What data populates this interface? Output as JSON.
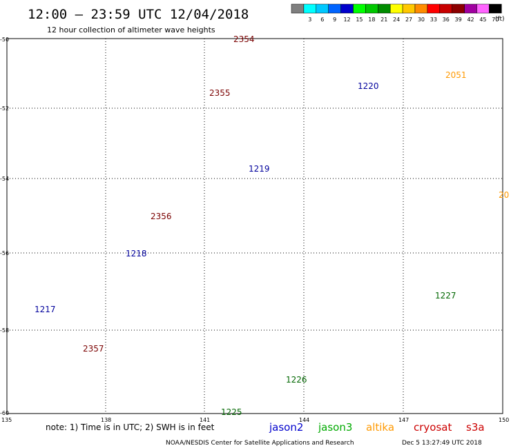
{
  "header": {
    "title": "12:00 — 23:59 UTC 12/04/2018",
    "subtitle": "12 hour collection of altimeter wave heights"
  },
  "colorbar": {
    "unit": "(ft)",
    "bins": [
      {
        "label": "",
        "color": "#7f7f7f"
      },
      {
        "label": "3",
        "color": "#00ffff"
      },
      {
        "label": "6",
        "color": "#00c8ff"
      },
      {
        "label": "9",
        "color": "#0064ff"
      },
      {
        "label": "12",
        "color": "#0000cc"
      },
      {
        "label": "15",
        "color": "#00ff00"
      },
      {
        "label": "18",
        "color": "#00c800"
      },
      {
        "label": "21",
        "color": "#008c00"
      },
      {
        "label": "24",
        "color": "#ffff00"
      },
      {
        "label": "27",
        "color": "#ffc800"
      },
      {
        "label": "30",
        "color": "#ff8c00"
      },
      {
        "label": "33",
        "color": "#ff0000"
      },
      {
        "label": "36",
        "color": "#c80000"
      },
      {
        "label": "39",
        "color": "#8c0000"
      },
      {
        "label": "42",
        "color": "#a000a0"
      },
      {
        "label": "45",
        "color": "#ff64ff"
      },
      {
        "label": "70",
        "color": "#000000"
      }
    ]
  },
  "axes": {
    "x_ticks": [
      "135",
      "138",
      "141",
      "144",
      "147",
      "150"
    ],
    "y_ticks": [
      "-50",
      "-52",
      "-54",
      "-56",
      "-58",
      "-60"
    ]
  },
  "passes": [
    {
      "label": "2354",
      "color": "#7a0000"
    },
    {
      "label": "2355",
      "color": "#7a0000"
    },
    {
      "label": "2356",
      "color": "#7a0000"
    },
    {
      "label": "2357",
      "color": "#7a0000"
    },
    {
      "label": "1220",
      "color": "#00009c"
    },
    {
      "label": "2051",
      "color": "#ff9900"
    },
    {
      "label": "1219",
      "color": "#00009c"
    },
    {
      "label": "1218",
      "color": "#00009c"
    },
    {
      "label": "1217",
      "color": "#00009c"
    },
    {
      "label": "1227",
      "color": "#006600"
    },
    {
      "label": "1226",
      "color": "#006600"
    },
    {
      "label": "1225",
      "color": "#006600"
    },
    {
      "label": "20",
      "color": "#ff9900"
    }
  ],
  "legend": {
    "note": "note: 1) Time is in UTC; 2) SWH is in feet",
    "missions": [
      {
        "name": "jason2",
        "color": "#0000cc"
      },
      {
        "name": "jason3",
        "color": "#00aa00"
      },
      {
        "name": "altika",
        "color": "#ff9900"
      },
      {
        "name": "cryosat",
        "color": "#cc0000"
      },
      {
        "name": "s3a",
        "color": "#cc0000"
      }
    ]
  },
  "footer": {
    "org": "NOAA/NESDIS Center for Satellite Applications and Research",
    "timestamp": "Dec  5 13:27:49 UTC 2018"
  },
  "colors": {
    "grid": "#000000",
    "background": "#ffffff"
  }
}
